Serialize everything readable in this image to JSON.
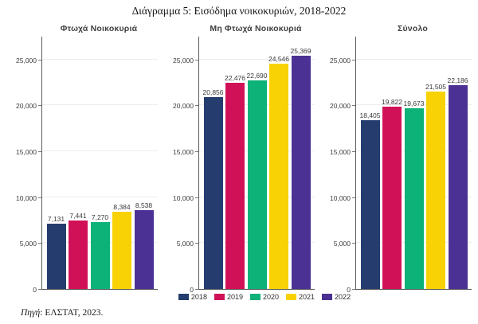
{
  "chart_data": {
    "type": "bar",
    "title": "Διάγραμμα 5: Εισόδημα νοικοκυριών, 2018-2022",
    "categories": [
      "2018",
      "2019",
      "2020",
      "2021",
      "2022"
    ],
    "series_colors": [
      "#253c6e",
      "#d11157",
      "#0cb277",
      "#f8d204",
      "#4b3193"
    ],
    "panels": [
      {
        "title": "Φτωχά Νοικοκυριά",
        "values": [
          7131,
          7441,
          7270,
          8384,
          8538
        ],
        "labels": [
          "7,131",
          "7,441",
          "7,270",
          "8,384",
          "8,538"
        ]
      },
      {
        "title": "Μη Φτωχά Νοικοκυριά",
        "values": [
          20856,
          22476,
          22690,
          24546,
          25369
        ],
        "labels": [
          "20,856",
          "22,476",
          "22,690",
          "24,546",
          "25,369"
        ]
      },
      {
        "title": "Σύνολο",
        "values": [
          18405,
          19822,
          19673,
          21505,
          22186
        ],
        "labels": [
          "18,405",
          "19,822",
          "19,673",
          "21,505",
          "22,186"
        ]
      }
    ],
    "ylim": [
      0,
      26000
    ],
    "yticks": [
      0,
      5000,
      10000,
      15000,
      20000,
      25000
    ],
    "ytick_labels": [
      "0",
      "5,000",
      "10,000",
      "15,000",
      "20,000",
      "25,000"
    ],
    "grid": true,
    "legend_position": "bottom"
  },
  "source_prefix": "Πηγή",
  "source_rest": ": ΕΛΣΤΑΤ, 2023."
}
